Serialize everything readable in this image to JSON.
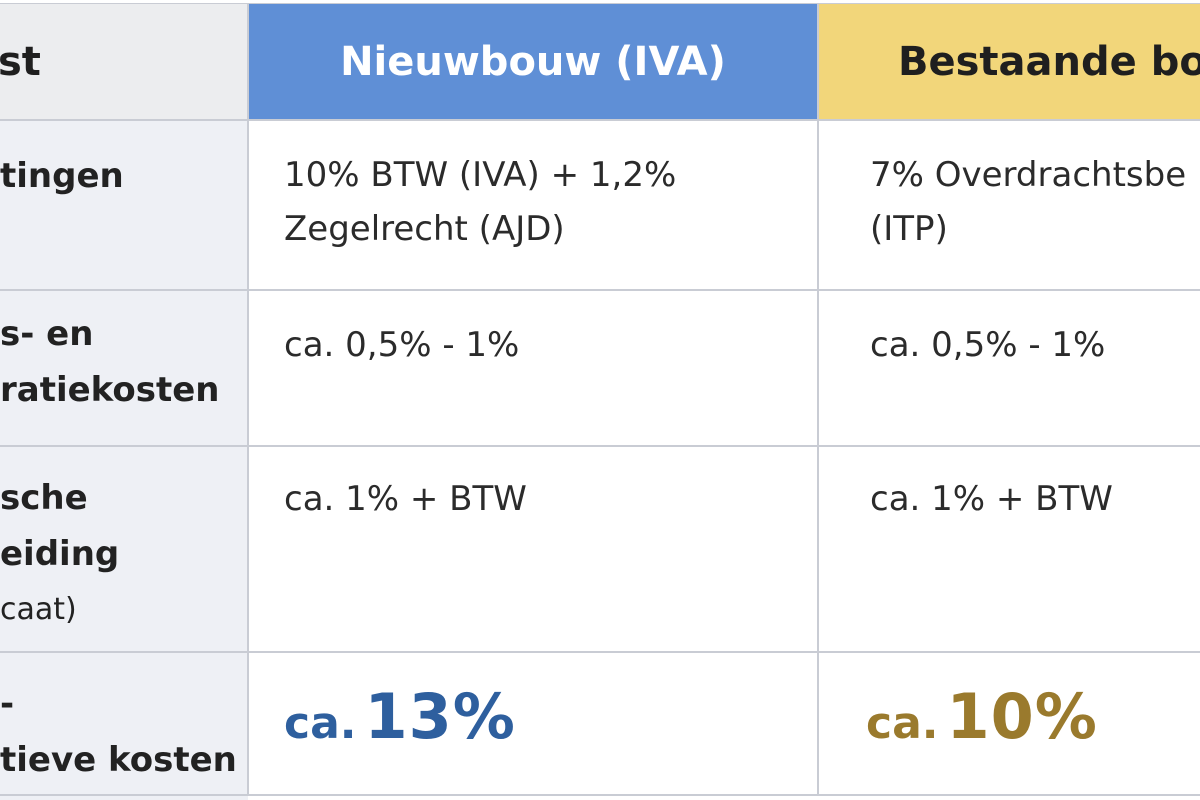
{
  "header": {
    "label_col": "st",
    "col_new": "Nieuwbouw (IVA)",
    "col_old": "Bestaande bou"
  },
  "rows": [
    {
      "label": [
        "tingen"
      ],
      "new": [
        "10% BTW (IVA) + 1,2%",
        "Zegelrecht (AJD)"
      ],
      "old": [
        "7% Overdrachtsbe",
        "(ITP)"
      ]
    },
    {
      "label": [
        "s- en",
        "ratiekosten"
      ],
      "new": [
        "ca. 0,5% - 1%"
      ],
      "old": [
        "ca. 0,5% - 1%"
      ]
    },
    {
      "label": [
        "sche",
        "eiding",
        "caat)"
      ],
      "new": [
        "ca. 1% + BTW"
      ],
      "old": [
        "ca. 1% + BTW"
      ]
    }
  ],
  "total": {
    "label": [
      "-",
      "tieve kosten"
    ],
    "new_prefix": "ca.",
    "new_value": "13%",
    "old_prefix": "ca.",
    "old_value": "10%"
  },
  "colors": {
    "header_new": "#5f8fd6",
    "header_old": "#f2d67a",
    "total_new": "#2e5f9e",
    "total_old": "#9a7a2d"
  }
}
